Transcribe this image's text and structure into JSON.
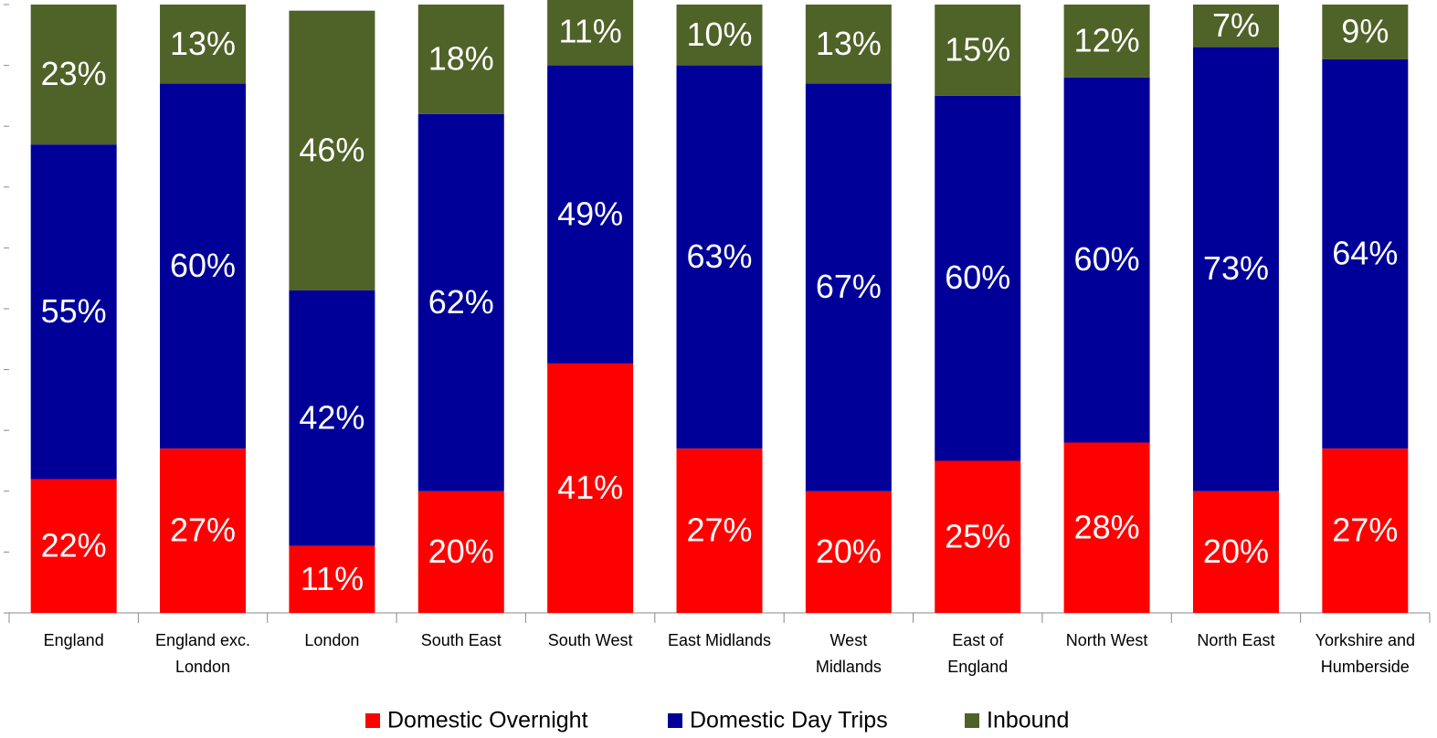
{
  "chart_data": {
    "type": "stacked_bar",
    "categories": [
      "England",
      "England exc. London",
      "London",
      "South East",
      "South West",
      "East Midlands",
      "West Midlands",
      "East of England",
      "North West",
      "North East",
      "Yorkshire and Humberside"
    ],
    "series": [
      {
        "name": "Domestic Overnight",
        "color": "#ff0000",
        "values": [
          22,
          27,
          11,
          20,
          41,
          27,
          20,
          25,
          28,
          20,
          27
        ]
      },
      {
        "name": "Domestic Day Trips",
        "color": "#000099",
        "values": [
          55,
          60,
          42,
          62,
          49,
          63,
          67,
          60,
          60,
          73,
          64
        ]
      },
      {
        "name": "Inbound",
        "color": "#4f6228",
        "values": [
          23,
          13,
          46,
          18,
          11,
          10,
          13,
          15,
          12,
          7,
          9
        ]
      }
    ],
    "value_labels": [
      [
        "22%",
        "27%",
        "11%",
        "20%",
        "41%",
        "27%",
        "20%",
        "25%",
        "28%",
        "20%",
        "27%"
      ],
      [
        "55%",
        "60%",
        "42%",
        "62%",
        "49%",
        "63%",
        "67%",
        "60%",
        "60%",
        "73%",
        "64%"
      ],
      [
        "23%",
        "13%",
        "46%",
        "18%",
        "11%",
        "10%",
        "13%",
        "15%",
        "12%",
        "7%",
        "9%"
      ]
    ],
    "ylim": [
      0,
      100
    ],
    "yticks": [
      0,
      10,
      20,
      30,
      40,
      50,
      60,
      70,
      80,
      90,
      100
    ],
    "legend": "bottom"
  }
}
